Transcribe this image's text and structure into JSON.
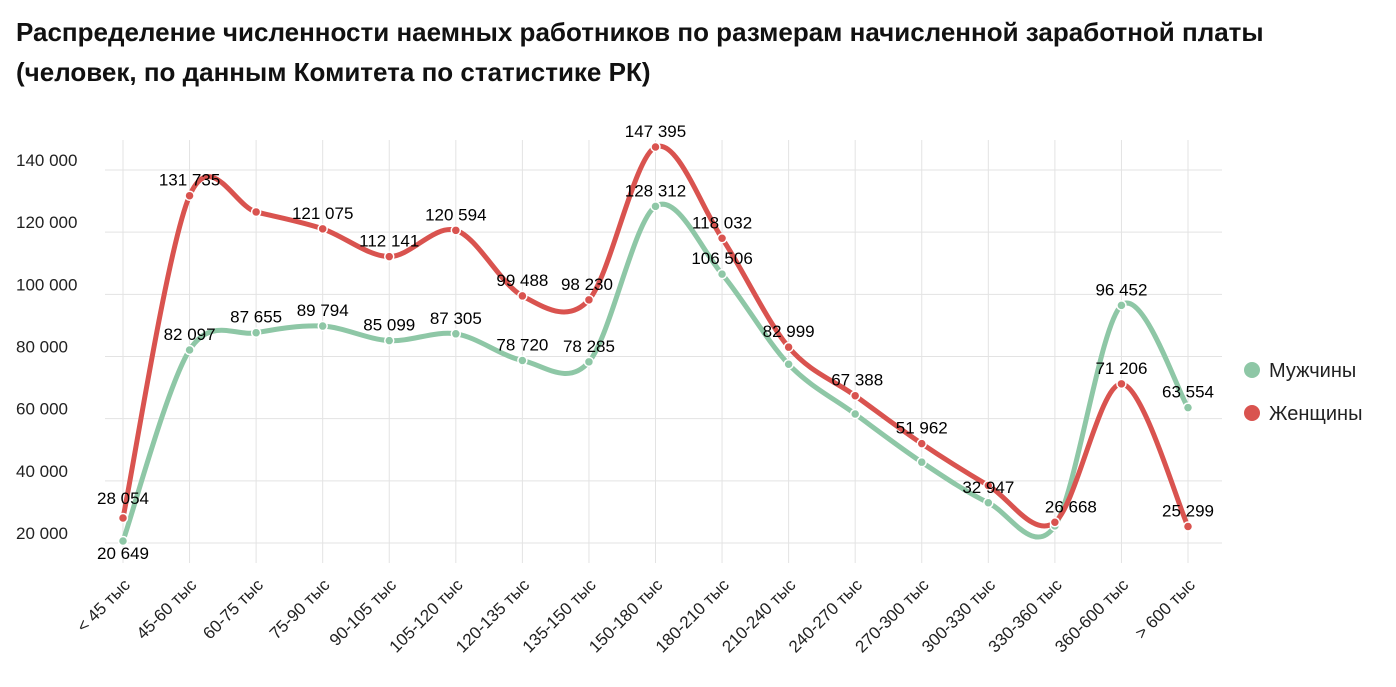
{
  "title": {
    "line1": "Распределение численности наемных работников по размерам начисленной заработной платы",
    "line2": "(человек, по данным Комитета по статистике РК)"
  },
  "chart_data": {
    "type": "line",
    "categories": [
      "< 45 тыс",
      "45-60 тыс",
      "60-75 тыс",
      "75-90 тыс",
      "90-105 тыс",
      "105-120 тыс",
      "120-135 тыс",
      "135-150 тыс",
      "150-180 тыс",
      "180-210 тыс",
      "210-240 тыс",
      "240-270 тыс",
      "270-300 тыс",
      "300-330 тыс",
      "330-360 тыс",
      "360-600 тыс",
      "> 600 тыс"
    ],
    "series": [
      {
        "name": "Мужчины",
        "color": "#8ec7a6",
        "values": [
          20649,
          82097,
          87655,
          89794,
          85099,
          87305,
          78720,
          78285,
          128312,
          106506,
          77500,
          61500,
          46000,
          32947,
          25500,
          96452,
          63554
        ],
        "labels": [
          "20 649",
          "82 097",
          "87 655",
          "89 794",
          "85 099",
          "87 305",
          "78 720",
          "78 285",
          "128 312",
          "106 506",
          "",
          "",
          "",
          "32 947",
          "",
          "96 452",
          "63 554"
        ]
      },
      {
        "name": "Женщины",
        "color": "#d9534f",
        "values": [
          28054,
          131735,
          126500,
          121075,
          112141,
          120594,
          99488,
          98230,
          147395,
          118032,
          82999,
          67388,
          51962,
          38500,
          26668,
          71206,
          25299
        ],
        "labels": [
          "28 054",
          "131 735",
          "",
          "121 075",
          "112 141",
          "120 594",
          "99 488",
          "98 230",
          "147 395",
          "118 032",
          "82 999",
          "67 388",
          "51 962",
          "",
          "26 668",
          "71 206",
          "25 299"
        ]
      }
    ],
    "yticks": [
      20000,
      40000,
      60000,
      80000,
      100000,
      120000,
      140000
    ],
    "ytick_labels": [
      "20 000",
      "40 000",
      "60 000",
      "80 000",
      "100 000",
      "120 000",
      "140 000"
    ],
    "ylim": [
      13000,
      150000
    ],
    "grid": true,
    "legend_position": "right"
  }
}
